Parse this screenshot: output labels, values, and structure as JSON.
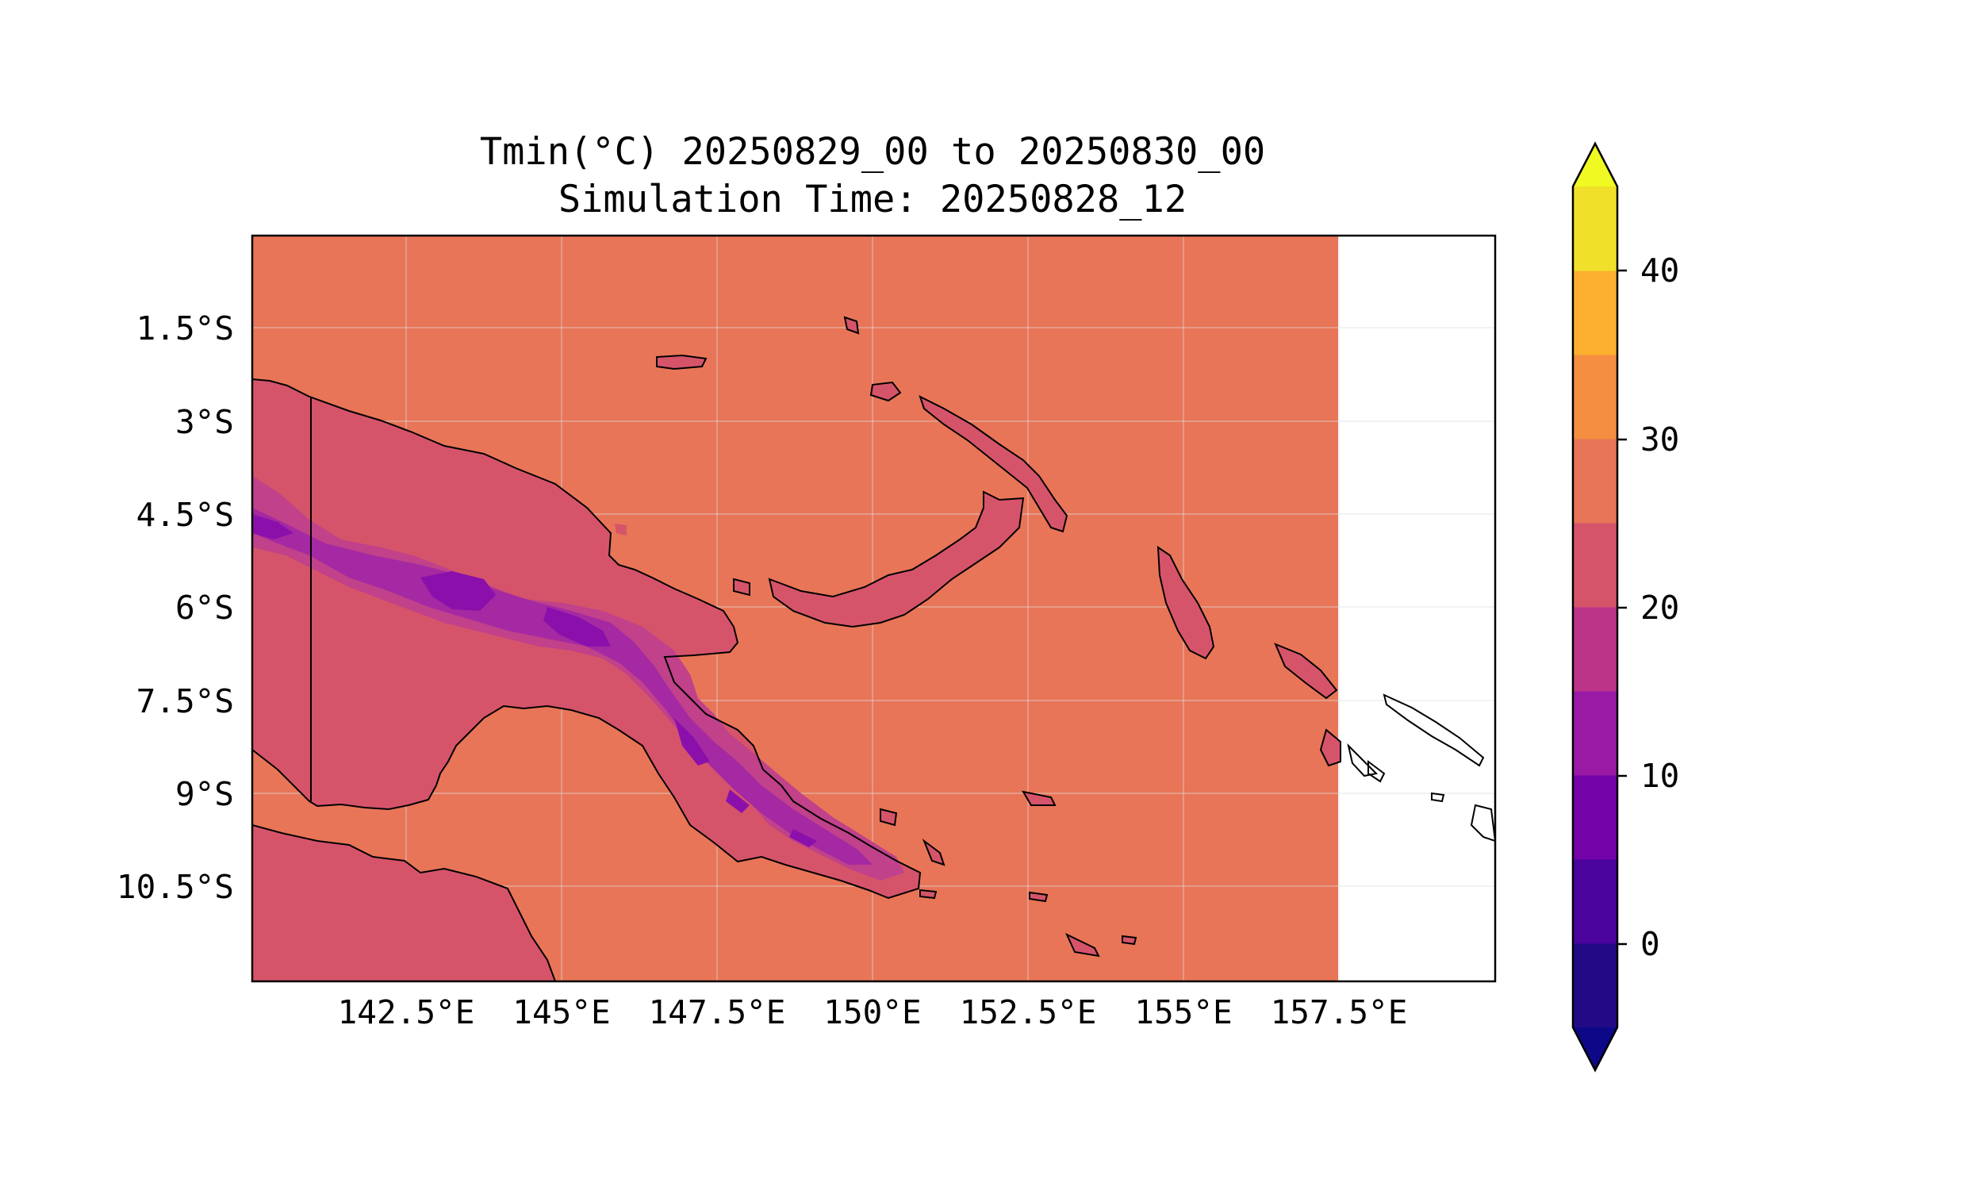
{
  "title": {
    "line1": "Tmin(°C) 20250829_00 to 20250830_00",
    "line2": "Simulation Time: 20250828_12"
  },
  "map": {
    "lat_labels": [
      "1.5°S",
      "3°S",
      "4.5°S",
      "6°S",
      "7.5°S",
      "9°S",
      "10.5°S"
    ],
    "lon_labels": [
      "142.5°E",
      "145°E",
      "147.5°E",
      "150°E",
      "152.5°E",
      "155°E",
      "157.5°E"
    ],
    "field_colors": {
      "ocean_25_30": "#e87557",
      "range_20_25": "#d6546a",
      "range_15_20": "#c1418a",
      "range_10_15": "#a429a2",
      "range_5_10": "#8b10ab",
      "coastline": "#000000"
    }
  },
  "colorbar": {
    "tick_labels": [
      "0",
      "10",
      "20",
      "30",
      "40"
    ],
    "colors": [
      "#220a87",
      "#4b049d",
      "#7303a9",
      "#9a1aa6",
      "#bb3487",
      "#d6546a",
      "#e87557",
      "#f58e41",
      "#fcb02d",
      "#f1e02a"
    ],
    "under_color": "#0d0887",
    "over_color": "#f0f921"
  }
}
